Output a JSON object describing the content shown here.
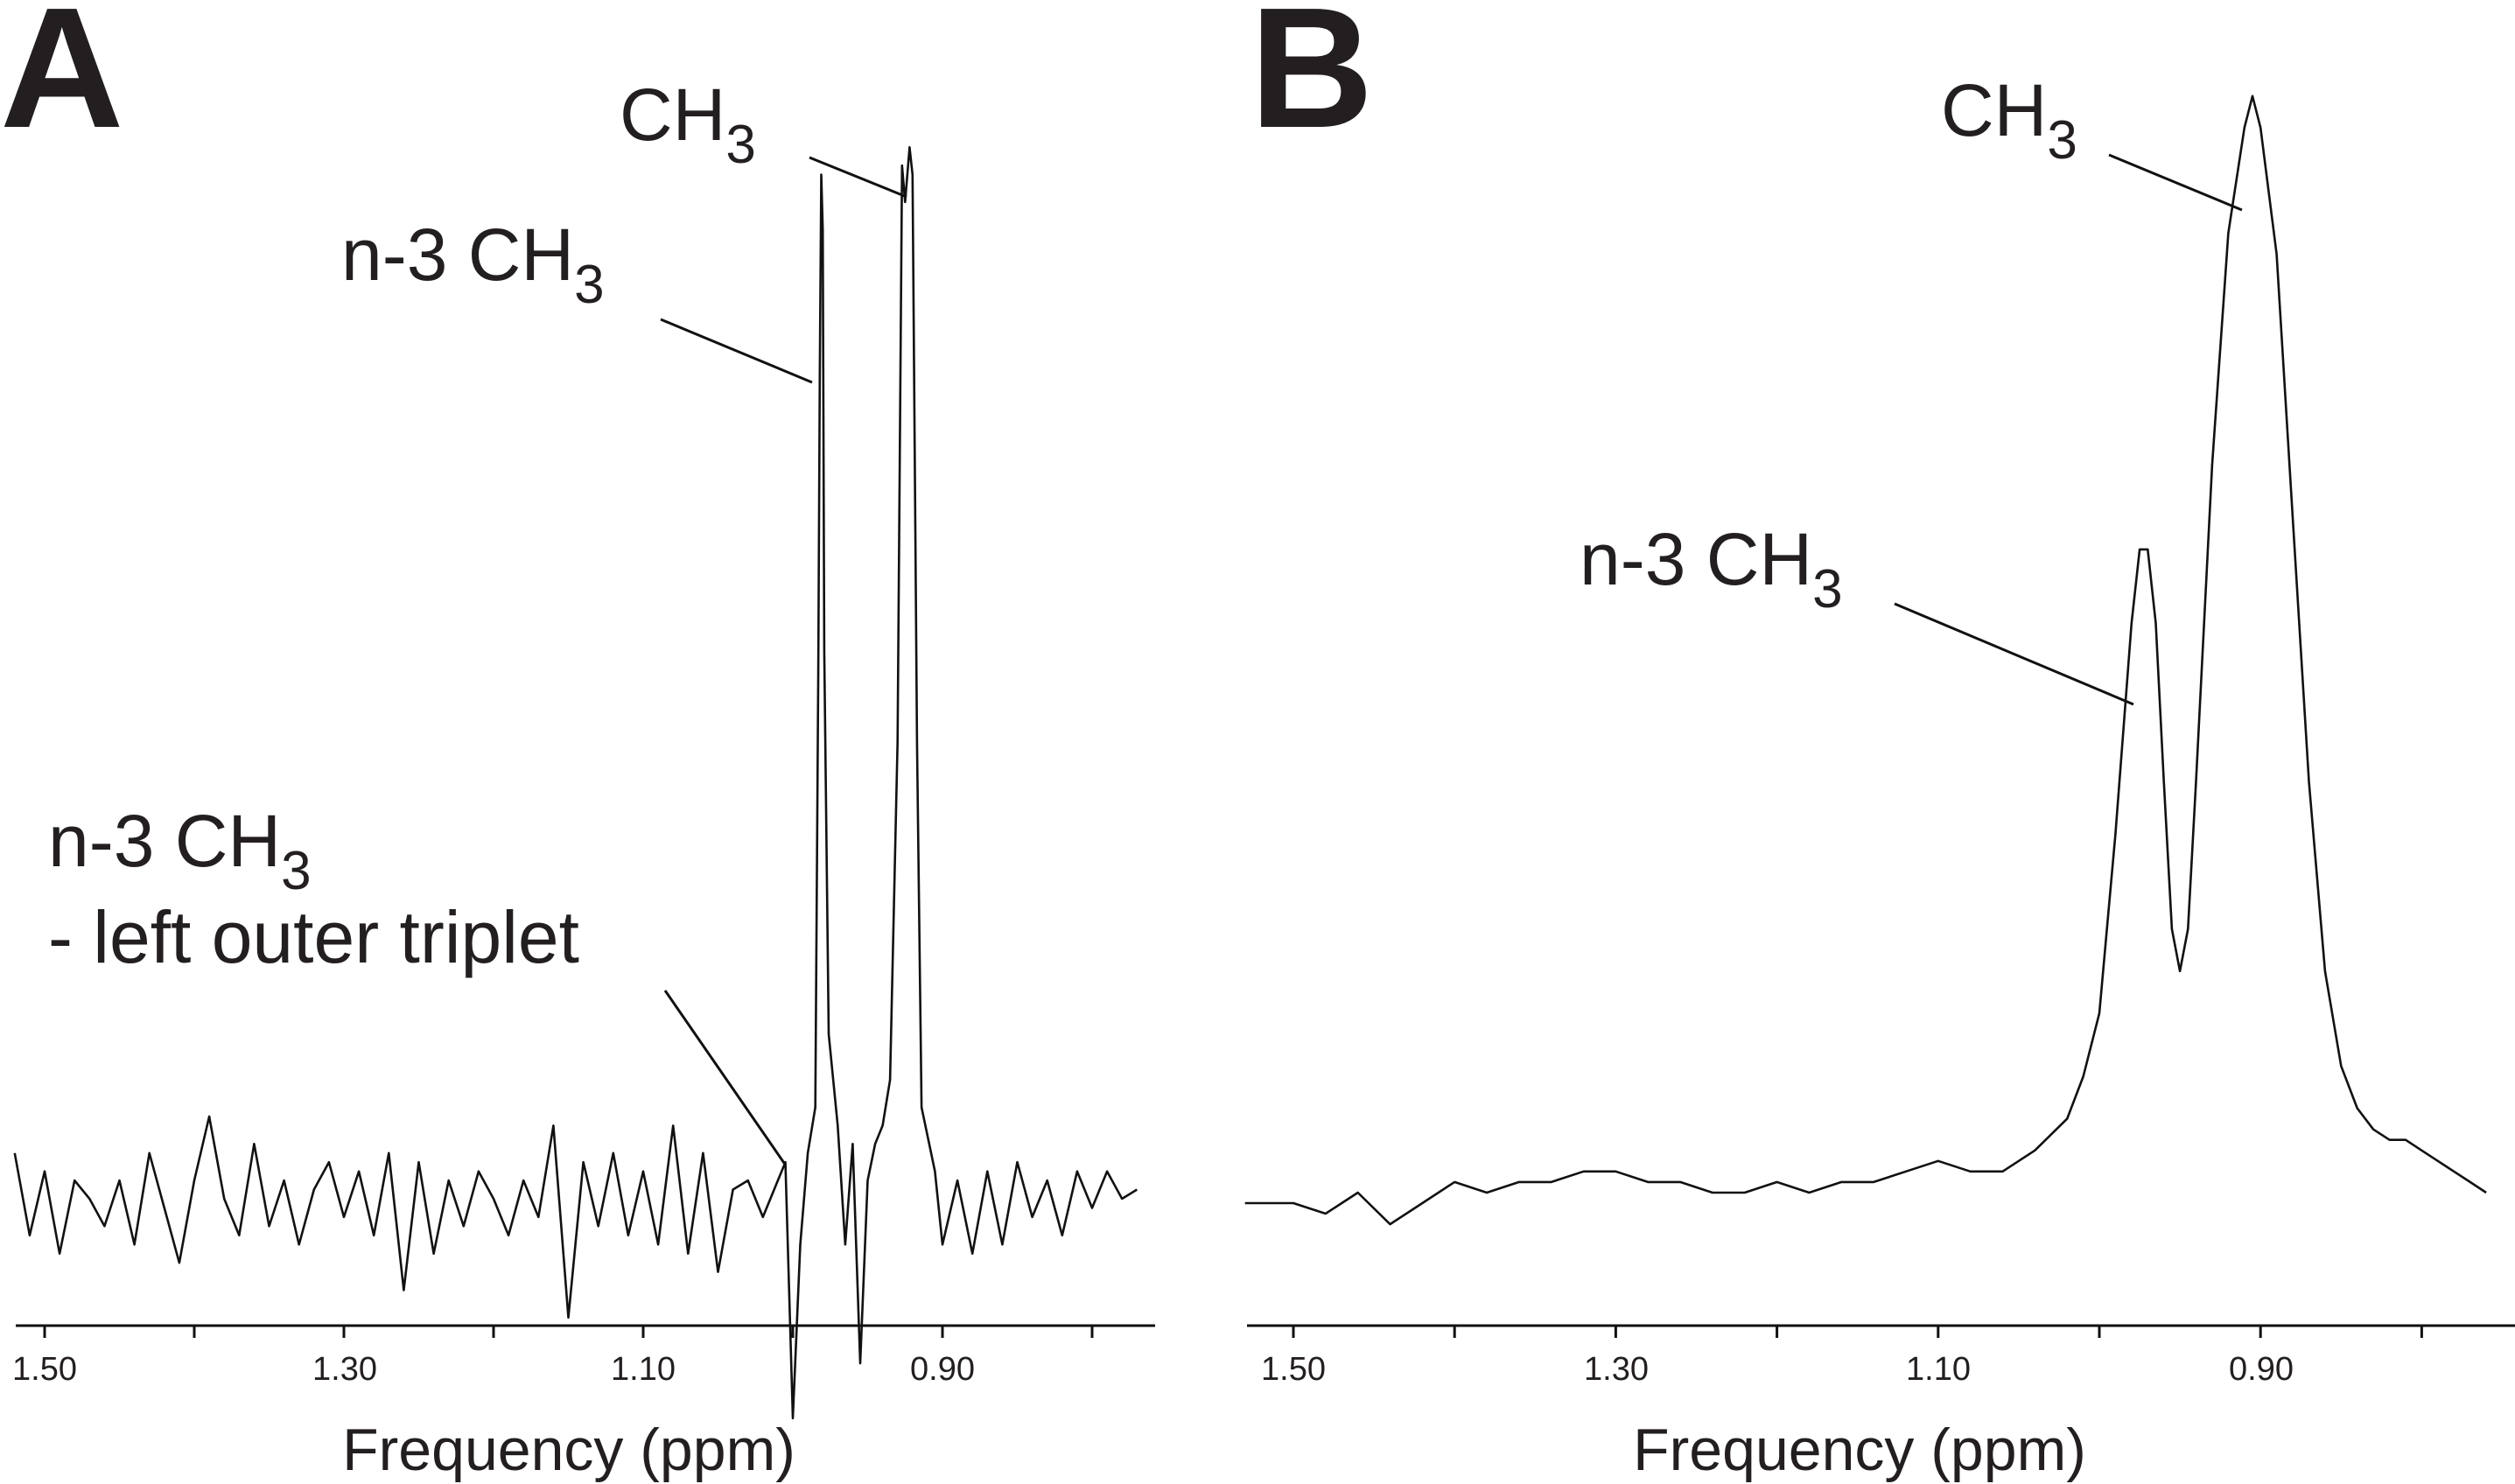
{
  "panels": [
    {
      "label": "A",
      "annotations": [
        {
          "text": "CH",
          "sub": "3"
        },
        {
          "text": "n-3 CH",
          "sub": "3"
        },
        {
          "text": "n-3 CH",
          "sub": "3",
          "line2": "- left outer triplet"
        }
      ],
      "x_axis": {
        "label": "Frequency (ppm)",
        "tick_labels": [
          "1.50",
          "1.30",
          "1.10",
          "0.90"
        ]
      }
    },
    {
      "label": "B",
      "annotations": [
        {
          "text": "CH",
          "sub": "3"
        },
        {
          "text": "n-3 CH",
          "sub": "3"
        }
      ],
      "x_axis": {
        "label": "Frequency (ppm)",
        "tick_labels": [
          "1.50",
          "1.30",
          "1.10",
          "0.90"
        ]
      }
    }
  ],
  "chart_data": [
    {
      "type": "line",
      "panel": "A",
      "xlabel": "Frequency (ppm)",
      "ylabel": "",
      "xlim": [
        1.53,
        0.76
      ],
      "x_reversed": true,
      "x_ticks": [
        1.5,
        1.4,
        1.3,
        1.2,
        1.1,
        1.0,
        0.9,
        0.8
      ],
      "x_tick_labels": [
        1.5,
        1.3,
        1.1,
        0.9
      ],
      "grid": false,
      "series": [
        {
          "points": [
            [
              1.52,
              0.05
            ],
            [
              1.51,
              -0.04
            ],
            [
              1.5,
              0.03
            ],
            [
              1.49,
              -0.06
            ],
            [
              1.48,
              0.02
            ],
            [
              1.47,
              0.0
            ],
            [
              1.46,
              -0.03
            ],
            [
              1.45,
              0.02
            ],
            [
              1.44,
              -0.05
            ],
            [
              1.43,
              0.05
            ],
            [
              1.42,
              -0.01
            ],
            [
              1.41,
              -0.07
            ],
            [
              1.4,
              0.02
            ],
            [
              1.39,
              0.09
            ],
            [
              1.38,
              0.0
            ],
            [
              1.37,
              -0.04
            ],
            [
              1.36,
              0.06
            ],
            [
              1.35,
              -0.03
            ],
            [
              1.34,
              0.02
            ],
            [
              1.33,
              -0.05
            ],
            [
              1.32,
              0.01
            ],
            [
              1.31,
              0.04
            ],
            [
              1.3,
              -0.02
            ],
            [
              1.29,
              0.03
            ],
            [
              1.28,
              -0.04
            ],
            [
              1.27,
              0.05
            ],
            [
              1.26,
              -0.1
            ],
            [
              1.25,
              0.04
            ],
            [
              1.24,
              -0.06
            ],
            [
              1.23,
              0.02
            ],
            [
              1.22,
              -0.03
            ],
            [
              1.21,
              0.03
            ],
            [
              1.2,
              0.0
            ],
            [
              1.19,
              -0.04
            ],
            [
              1.18,
              0.02
            ],
            [
              1.17,
              -0.02
            ],
            [
              1.16,
              0.08
            ],
            [
              1.15,
              -0.13
            ],
            [
              1.14,
              0.04
            ],
            [
              1.13,
              -0.03
            ],
            [
              1.12,
              0.05
            ],
            [
              1.11,
              -0.04
            ],
            [
              1.1,
              0.03
            ],
            [
              1.09,
              -0.05
            ],
            [
              1.08,
              0.08
            ],
            [
              1.07,
              -0.06
            ],
            [
              1.06,
              0.05
            ],
            [
              1.05,
              -0.08
            ],
            [
              1.04,
              0.01
            ],
            [
              1.03,
              0.02
            ],
            [
              1.02,
              -0.02
            ],
            [
              1.01,
              0.02
            ],
            [
              1.005,
              0.04
            ],
            [
              1.0,
              -0.24
            ],
            [
              0.995,
              -0.05
            ],
            [
              0.99,
              0.05
            ],
            [
              0.985,
              0.1
            ],
            [
              0.983,
              0.58
            ],
            [
              0.982,
              0.9
            ],
            [
              0.981,
              1.12
            ],
            [
              0.98,
              1.06
            ],
            [
              0.979,
              0.6
            ],
            [
              0.976,
              0.18
            ],
            [
              0.97,
              0.08
            ],
            [
              0.965,
              -0.05
            ],
            [
              0.96,
              0.06
            ],
            [
              0.955,
              -0.18
            ],
            [
              0.95,
              0.02
            ],
            [
              0.945,
              0.06
            ],
            [
              0.94,
              0.08
            ],
            [
              0.935,
              0.13
            ],
            [
              0.93,
              0.5
            ],
            [
              0.927,
              1.13
            ],
            [
              0.925,
              1.09
            ],
            [
              0.922,
              1.15
            ],
            [
              0.92,
              1.12
            ],
            [
              0.917,
              0.5
            ],
            [
              0.914,
              0.1
            ],
            [
              0.905,
              0.03
            ],
            [
              0.9,
              -0.05
            ],
            [
              0.89,
              0.02
            ],
            [
              0.88,
              -0.06
            ],
            [
              0.87,
              0.03
            ],
            [
              0.86,
              -0.05
            ],
            [
              0.85,
              0.04
            ],
            [
              0.84,
              -0.02
            ],
            [
              0.83,
              0.02
            ],
            [
              0.82,
              -0.04
            ],
            [
              0.81,
              0.03
            ],
            [
              0.8,
              -0.01
            ],
            [
              0.79,
              0.03
            ],
            [
              0.78,
              0.0
            ],
            [
              0.77,
              0.01
            ]
          ]
        }
      ]
    },
    {
      "type": "line",
      "panel": "B",
      "xlabel": "Frequency (ppm)",
      "ylabel": "",
      "xlim": [
        1.53,
        0.76
      ],
      "x_reversed": true,
      "x_ticks": [
        1.5,
        1.4,
        1.3,
        1.2,
        1.1,
        1.0,
        0.9,
        0.8
      ],
      "x_tick_labels": [
        1.5,
        1.3,
        1.1,
        0.9
      ],
      "grid": false,
      "series": [
        {
          "points": [
            [
              1.53,
              0.0
            ],
            [
              1.5,
              0.0
            ],
            [
              1.48,
              -0.01
            ],
            [
              1.46,
              0.01
            ],
            [
              1.44,
              -0.02
            ],
            [
              1.42,
              0.0
            ],
            [
              1.4,
              0.02
            ],
            [
              1.38,
              0.01
            ],
            [
              1.36,
              0.02
            ],
            [
              1.34,
              0.02
            ],
            [
              1.32,
              0.03
            ],
            [
              1.3,
              0.03
            ],
            [
              1.28,
              0.02
            ],
            [
              1.26,
              0.02
            ],
            [
              1.24,
              0.01
            ],
            [
              1.22,
              0.01
            ],
            [
              1.2,
              0.02
            ],
            [
              1.18,
              0.01
            ],
            [
              1.16,
              0.02
            ],
            [
              1.14,
              0.02
            ],
            [
              1.12,
              0.03
            ],
            [
              1.1,
              0.04
            ],
            [
              1.08,
              0.03
            ],
            [
              1.06,
              0.03
            ],
            [
              1.04,
              0.05
            ],
            [
              1.02,
              0.08
            ],
            [
              1.01,
              0.12
            ],
            [
              1.0,
              0.18
            ],
            [
              0.99,
              0.35
            ],
            [
              0.98,
              0.55
            ],
            [
              0.975,
              0.62
            ],
            [
              0.97,
              0.62
            ],
            [
              0.965,
              0.55
            ],
            [
              0.96,
              0.4
            ],
            [
              0.955,
              0.26
            ],
            [
              0.95,
              0.22
            ],
            [
              0.945,
              0.26
            ],
            [
              0.94,
              0.4
            ],
            [
              0.93,
              0.7
            ],
            [
              0.92,
              0.92
            ],
            [
              0.91,
              1.02
            ],
            [
              0.905,
              1.05
            ],
            [
              0.9,
              1.02
            ],
            [
              0.89,
              0.9
            ],
            [
              0.88,
              0.65
            ],
            [
              0.87,
              0.4
            ],
            [
              0.86,
              0.22
            ],
            [
              0.85,
              0.13
            ],
            [
              0.84,
              0.09
            ],
            [
              0.83,
              0.07
            ],
            [
              0.82,
              0.06
            ],
            [
              0.81,
              0.06
            ],
            [
              0.8,
              0.05
            ],
            [
              0.79,
              0.04
            ],
            [
              0.78,
              0.03
            ],
            [
              0.77,
              0.02
            ],
            [
              0.76,
              0.01
            ]
          ]
        }
      ]
    }
  ]
}
